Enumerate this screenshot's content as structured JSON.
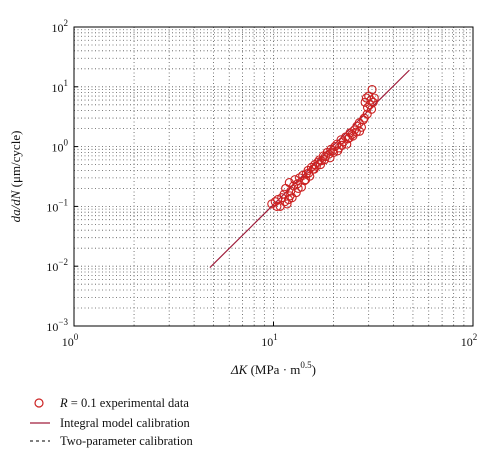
{
  "chart_data": {
    "type": "scatter",
    "title": "",
    "xscale": "log",
    "yscale": "log",
    "xlim": [
      1,
      100
    ],
    "ylim": [
      0.001,
      100
    ],
    "grid": true,
    "legend_position": "bottom-left",
    "x_ticks": [
      {
        "value": 1,
        "base": "10",
        "exp": "0"
      },
      {
        "value": 10,
        "base": "10",
        "exp": "1"
      },
      {
        "value": 100,
        "base": "10",
        "exp": "2"
      }
    ],
    "y_ticks": [
      {
        "value": 0.001,
        "base": "10",
        "exp": "−3"
      },
      {
        "value": 0.01,
        "base": "10",
        "exp": "−2"
      },
      {
        "value": 0.1,
        "base": "10",
        "exp": "−1"
      },
      {
        "value": 1,
        "base": "10",
        "exp": "0"
      },
      {
        "value": 10,
        "base": "10",
        "exp": "1"
      },
      {
        "value": 100,
        "base": "10",
        "exp": "2"
      }
    ],
    "xlabel": {
      "symbol": "ΔK",
      "unit_open": " (MPa · m",
      "unit_exp": "0.5",
      "unit_close": ")"
    },
    "ylabel": {
      "symbol": "da/dN",
      "unit": " (μm/cycle)"
    },
    "series": [
      {
        "name": "R = 0.1 experimental data",
        "name_prefix": "R",
        "name_suffix": " = 0.1 experimental data",
        "kind": "scatter",
        "marker": "open-circle",
        "color": "#cc2222",
        "points": [
          [
            9.8,
            0.11
          ],
          [
            10.2,
            0.12
          ],
          [
            10.5,
            0.13
          ],
          [
            10.8,
            0.1
          ],
          [
            11.0,
            0.14
          ],
          [
            11.3,
            0.16
          ],
          [
            11.5,
            0.2
          ],
          [
            11.7,
            0.11
          ],
          [
            11.9,
            0.13
          ],
          [
            12.0,
            0.25
          ],
          [
            12.2,
            0.18
          ],
          [
            12.4,
            0.14
          ],
          [
            12.6,
            0.22
          ],
          [
            12.8,
            0.28
          ],
          [
            13.0,
            0.17
          ],
          [
            13.2,
            0.24
          ],
          [
            13.5,
            0.3
          ],
          [
            13.8,
            0.21
          ],
          [
            14.0,
            0.33
          ],
          [
            14.3,
            0.27
          ],
          [
            14.6,
            0.35
          ],
          [
            14.9,
            0.4
          ],
          [
            15.2,
            0.32
          ],
          [
            15.5,
            0.45
          ],
          [
            15.8,
            0.42
          ],
          [
            16.1,
            0.5
          ],
          [
            16.4,
            0.47
          ],
          [
            16.7,
            0.55
          ],
          [
            17.0,
            0.6
          ],
          [
            17.4,
            0.58
          ],
          [
            17.8,
            0.7
          ],
          [
            18.2,
            0.68
          ],
          [
            18.6,
            0.8
          ],
          [
            19.0,
            0.75
          ],
          [
            19.4,
            0.9
          ],
          [
            19.8,
            0.85
          ],
          [
            20.3,
            1.0
          ],
          [
            20.8,
            1.1
          ],
          [
            21.3,
            0.95
          ],
          [
            21.8,
            1.3
          ],
          [
            22.4,
            1.2
          ],
          [
            23.0,
            1.45
          ],
          [
            23.6,
            1.35
          ],
          [
            24.2,
            1.7
          ],
          [
            24.8,
            1.6
          ],
          [
            25.5,
            1.9
          ],
          [
            26.2,
            2.2
          ],
          [
            26.9,
            2.5
          ],
          [
            27.6,
            2.1
          ],
          [
            28.2,
            2.8
          ],
          [
            28.8,
            5.5
          ],
          [
            29.2,
            6.5
          ],
          [
            29.6,
            4.5
          ],
          [
            30.0,
            7.0
          ],
          [
            30.4,
            5.0
          ],
          [
            30.8,
            6.0
          ],
          [
            31.2,
            9.0
          ],
          [
            31.6,
            5.5
          ],
          [
            32.0,
            6.5
          ],
          [
            28.5,
            3.0
          ],
          [
            27.0,
            1.8
          ],
          [
            25.0,
            1.5
          ],
          [
            23.3,
            1.1
          ],
          [
            21.0,
            0.85
          ],
          [
            19.2,
            0.65
          ],
          [
            17.2,
            0.5
          ],
          [
            15.0,
            0.36
          ],
          [
            13.3,
            0.2
          ],
          [
            11.4,
            0.12
          ],
          [
            10.4,
            0.1
          ],
          [
            12.1,
            0.15
          ],
          [
            14.5,
            0.28
          ],
          [
            16.0,
            0.42
          ],
          [
            18.0,
            0.6
          ],
          [
            20.0,
            0.8
          ],
          [
            22.0,
            1.05
          ],
          [
            24.0,
            1.4
          ],
          [
            26.0,
            1.75
          ],
          [
            29.5,
            3.5
          ],
          [
            31.0,
            4.2
          ]
        ]
      },
      {
        "name": "Integral model calibration",
        "kind": "line",
        "line": "solid",
        "color": "#a01e3c",
        "points": [
          [
            4.8,
            0.0095
          ],
          [
            48,
            19
          ]
        ]
      },
      {
        "name": "Two-parameter calibration",
        "kind": "line",
        "line": "dashed",
        "color": "#333333",
        "points": [
          [
            4.8,
            0.0095
          ],
          [
            48,
            19
          ]
        ]
      }
    ]
  }
}
